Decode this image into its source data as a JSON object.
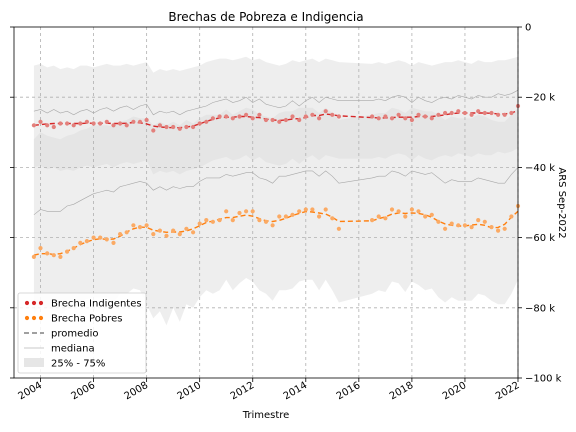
{
  "chart_data": {
    "type": "line",
    "title": "Brechas de Pobreza e Indigencia",
    "xlabel": "Trimestre",
    "ylabel": "ARS Sep-2022",
    "xlim": [
      2003.0,
      2022.0
    ],
    "ylim": [
      -100,
      0
    ],
    "y_axis_side": "right",
    "y_unit_suffix": " k",
    "grid": true,
    "legend_position": "lower-left",
    "x_ticks": [
      2004,
      2006,
      2008,
      2010,
      2012,
      2014,
      2016,
      2018,
      2020,
      2022
    ],
    "x_tick_labels": [
      "2004",
      "2006",
      "2008",
      "2010",
      "2012",
      "2014",
      "2016",
      "2018",
      "2020",
      "2022"
    ],
    "y_ticks": [
      0,
      -20,
      -40,
      -60,
      -80,
      -100
    ],
    "y_tick_labels": [
      "0",
      "−20 k",
      "−40 k",
      "−60 k",
      "−80 k",
      "−100 k"
    ],
    "legend": [
      {
        "label": "Brecha Indigentes",
        "kind": "dots",
        "color": "#d62728"
      },
      {
        "label": "Brecha Pobres",
        "kind": "dots",
        "color": "#ff7f0e"
      },
      {
        "label": "promedio",
        "kind": "dash",
        "color": "#808080"
      },
      {
        "label": "mediana",
        "kind": "line",
        "color": "#c8c8c8"
      },
      {
        "label": "25% - 75%",
        "kind": "patch",
        "color": "#e6e6e6"
      }
    ],
    "series": [
      {
        "name": "Brecha Indigentes",
        "color": "#d62728",
        "point_color": "#e3807c",
        "x": [
          2003.75,
          2004.0,
          2004.25,
          2004.5,
          2004.75,
          2005.0,
          2005.25,
          2005.5,
          2005.75,
          2006.0,
          2006.25,
          2006.5,
          2006.75,
          2007.0,
          2007.25,
          2007.5,
          2007.75,
          2008.0,
          2008.25,
          2008.5,
          2008.75,
          2009.0,
          2009.25,
          2009.5,
          2009.75,
          2010.0,
          2010.25,
          2010.5,
          2010.75,
          2011.0,
          2011.25,
          2011.5,
          2011.75,
          2012.0,
          2012.25,
          2012.5,
          2012.75,
          2013.0,
          2013.25,
          2013.5,
          2013.75,
          2014.0,
          2014.25,
          2014.5,
          2014.75,
          2015.0,
          2015.25,
          2016.5,
          2016.75,
          2017.0,
          2017.25,
          2017.5,
          2017.75,
          2018.0,
          2018.25,
          2018.5,
          2018.75,
          2019.0,
          2019.25,
          2019.5,
          2019.75,
          2020.0,
          2020.25,
          2020.5,
          2020.75,
          2021.0,
          2021.25,
          2021.5,
          2021.75,
          2022.0
        ],
        "points": [
          -28,
          -27,
          -28,
          -28.5,
          -27.5,
          -27.5,
          -28,
          -27.5,
          -27,
          -27.5,
          -27.5,
          -27,
          -28,
          -27.5,
          -28,
          -27,
          -27,
          -26.5,
          -29.5,
          -28,
          -28.5,
          -28.5,
          -29,
          -28.5,
          -28.5,
          -27.5,
          -27,
          -26,
          -25.5,
          -25.5,
          -26,
          -25.5,
          -25,
          -26,
          -25,
          -26.5,
          -26.5,
          -27,
          -26.5,
          -25.5,
          -26.5,
          -25.5,
          -25,
          -26,
          -24,
          -25,
          -25.5,
          -25.5,
          -26,
          -25.5,
          -26,
          -25,
          -26,
          -26.5,
          -25,
          -25.5,
          -26,
          -25,
          -24.5,
          -24.5,
          -24,
          -24.5,
          -25,
          -24,
          -24.5,
          -24.5,
          -25,
          -25,
          -24.5,
          -22.5
        ],
        "promedio": [
          -28,
          -27.8,
          -27.6,
          -27.5,
          -27.5,
          -27.5,
          -27.5,
          -27.5,
          -27.4,
          -27.4,
          -27.4,
          -27.4,
          -27.5,
          -27.5,
          -27.4,
          -27.2,
          -27.3,
          -27.6,
          -28.2,
          -28.5,
          -28.6,
          -28.7,
          -28.7,
          -28.5,
          -28.2,
          -27.6,
          -26.9,
          -26.3,
          -25.9,
          -25.7,
          -25.7,
          -25.5,
          -25.5,
          -25.7,
          -25.8,
          -26.2,
          -26.5,
          -26.6,
          -26.5,
          -26.2,
          -26.1,
          -25.8,
          -25.2,
          -25.2,
          -24.8,
          -25.0,
          -25.3,
          -25.8,
          -25.9,
          -25.9,
          -25.8,
          -25.7,
          -25.7,
          -25.7,
          -25.5,
          -25.5,
          -25.5,
          -25.3,
          -25.0,
          -24.7,
          -24.5,
          -24.5,
          -24.5,
          -24.5,
          -24.5,
          -24.6,
          -24.8,
          -24.8,
          -24.5,
          -23.8
        ],
        "mediana": [
          -24,
          -23.5,
          -24.5,
          -23.5,
          -24.5,
          -24,
          -25,
          -24,
          -23.5,
          -24.5,
          -23.5,
          -23,
          -24,
          -23,
          -22.5,
          -23.5,
          -22.5,
          -22,
          -25,
          -24,
          -24.5,
          -24,
          -25,
          -24,
          -23.5,
          -23,
          -22.5,
          -21.5,
          -21,
          -20.5,
          -21.5,
          -21,
          -20,
          -21.5,
          -20.5,
          -22,
          -22.5,
          -23,
          -22.5,
          -21,
          -22.5,
          -21,
          -20,
          -21.5,
          -20,
          -20.5,
          -21,
          -21,
          -20.5,
          -21,
          -20,
          -19.5,
          -20,
          -21.5,
          -20,
          -21,
          -21.5,
          -20.5,
          -20,
          -20.5,
          -19.5,
          -20,
          -20.5,
          -19.5,
          -20,
          -20,
          -19,
          -19.5,
          -19,
          -18
        ],
        "band_upper": [
          -11,
          -10.5,
          -11.5,
          -11,
          -12,
          -11.5,
          -12,
          -11,
          -11,
          -11.5,
          -11,
          -10.5,
          -11,
          -11,
          -10.5,
          -11,
          -10.5,
          -10,
          -13,
          -12,
          -12.5,
          -12,
          -12.5,
          -12,
          -11.5,
          -11,
          -10,
          -9.5,
          -9,
          -9,
          -9.5,
          -9,
          -8.5,
          -9.5,
          -9,
          -10,
          -10.5,
          -11,
          -10.5,
          -9.5,
          -10,
          -9.5,
          -9,
          -10,
          -9,
          -9.5,
          -10,
          -10.5,
          -10,
          -10.5,
          -10,
          -9.5,
          -10,
          -11,
          -10,
          -10.5,
          -11,
          -10.5,
          -10,
          -10,
          -9.5,
          -10,
          -10.5,
          -9.5,
          -10,
          -10,
          -9.5,
          -9.5,
          -9,
          -8.5
        ],
        "band_lower": [
          -40,
          -39.5,
          -40.5,
          -40,
          -41,
          -40.5,
          -41,
          -40,
          -39.5,
          -40,
          -39.5,
          -39,
          -40,
          -39,
          -38.5,
          -39,
          -38.5,
          -38,
          -42,
          -41,
          -41.5,
          -41,
          -42,
          -41,
          -40.5,
          -40,
          -39,
          -38,
          -37.5,
          -37,
          -38,
          -37.5,
          -36.5,
          -38,
          -37,
          -38.5,
          -39,
          -39.5,
          -39,
          -37.5,
          -39,
          -37.5,
          -36.5,
          -38,
          -36.5,
          -37,
          -37.5,
          -37.5,
          -37,
          -37.5,
          -36.5,
          -36,
          -36.5,
          -38,
          -36.5,
          -37.5,
          -38,
          -37,
          -36.5,
          -37,
          -36,
          -36.5,
          -37,
          -36,
          -36.5,
          -36.5,
          -35.5,
          -36,
          -35.5,
          -34.5
        ]
      },
      {
        "name": "Brecha Pobres",
        "color": "#ff7f0e",
        "point_color": "#fbaa64",
        "x": [
          2003.75,
          2004.0,
          2004.25,
          2004.5,
          2004.75,
          2005.0,
          2005.25,
          2005.5,
          2005.75,
          2006.0,
          2006.25,
          2006.5,
          2006.75,
          2007.0,
          2007.25,
          2007.5,
          2007.75,
          2008.0,
          2008.25,
          2008.5,
          2008.75,
          2009.0,
          2009.25,
          2009.5,
          2009.75,
          2010.0,
          2010.25,
          2010.5,
          2010.75,
          2011.0,
          2011.25,
          2011.5,
          2011.75,
          2012.0,
          2012.25,
          2012.5,
          2012.75,
          2013.0,
          2013.25,
          2013.5,
          2013.75,
          2014.0,
          2014.25,
          2014.5,
          2014.75,
          2015.0,
          2015.25,
          2016.5,
          2016.75,
          2017.0,
          2017.25,
          2017.5,
          2017.75,
          2018.0,
          2018.25,
          2018.5,
          2018.75,
          2019.0,
          2019.25,
          2019.5,
          2019.75,
          2020.0,
          2020.25,
          2020.5,
          2020.75,
          2021.0,
          2021.25,
          2021.5,
          2021.75,
          2022.0
        ],
        "points": [
          -65.5,
          -63,
          -64.5,
          -65,
          -65.5,
          -64,
          -63,
          -61.5,
          -61,
          -60,
          -60,
          -60.5,
          -61.5,
          -59,
          -58.5,
          -56.5,
          -57,
          -56.5,
          -59,
          -58,
          -59.5,
          -58,
          -59,
          -57.5,
          -58.5,
          -56,
          -55,
          -55.5,
          -55,
          -52.5,
          -55,
          -53,
          -52.5,
          -52.5,
          -55,
          -55.5,
          -56.5,
          -54,
          -54,
          -53.5,
          -52.5,
          -52,
          -52,
          -54,
          -52,
          -54.5,
          -57.5,
          -55,
          -54,
          -54.5,
          -52,
          -52.5,
          -54,
          -52,
          -52.5,
          -54,
          -53.5,
          -55.5,
          -57.5,
          -56,
          -56.5,
          -56.5,
          -57,
          -55,
          -55.5,
          -57,
          -58,
          -57.5,
          -54,
          -51
        ],
        "promedio": [
          -65,
          -64.6,
          -64.6,
          -64.8,
          -64.6,
          -63.9,
          -63.0,
          -62.0,
          -61.2,
          -60.6,
          -60.3,
          -60.5,
          -60.4,
          -59.6,
          -58.4,
          -57.5,
          -57.0,
          -57.1,
          -57.9,
          -58.2,
          -58.5,
          -58.4,
          -58.4,
          -58.1,
          -57.5,
          -56.6,
          -55.7,
          -55.3,
          -54.8,
          -54.3,
          -54.3,
          -53.9,
          -53.6,
          -53.9,
          -54.6,
          -55.2,
          -55.4,
          -55.1,
          -54.5,
          -53.7,
          -53.1,
          -52.6,
          -52.7,
          -53.0,
          -53.3,
          -54.2,
          -55.4,
          -55.2,
          -54.6,
          -54.1,
          -53.3,
          -53.0,
          -53.1,
          -53.0,
          -53.1,
          -53.5,
          -54.2,
          -55.3,
          -56.1,
          -56.5,
          -56.7,
          -56.7,
          -56.4,
          -56.2,
          -56.5,
          -57.2,
          -57.1,
          -56.2,
          -54.2,
          -52.5
        ],
        "mediana": [
          -53.5,
          -52,
          -52.5,
          -52.5,
          -52.5,
          -51,
          -50.5,
          -49.5,
          -48.5,
          -47.5,
          -47,
          -46.5,
          -47,
          -45.5,
          -45,
          -44.5,
          -44,
          -44.5,
          -46.5,
          -45.5,
          -46.5,
          -45.5,
          -46,
          -45.5,
          -45.5,
          -44,
          -43,
          -43,
          -43,
          -42,
          -42.5,
          -42,
          -41.5,
          -41.5,
          -43,
          -43.5,
          -44.5,
          -42.5,
          -42.5,
          -42,
          -41.5,
          -41,
          -41,
          -42.5,
          -41,
          -42.5,
          -44.5,
          -43,
          -42.5,
          -42.5,
          -41,
          -41.5,
          -42.5,
          -41,
          -41.5,
          -42,
          -41.5,
          -43,
          -44.5,
          -43.5,
          -44,
          -44,
          -44,
          -43,
          -43.5,
          -44,
          -44.5,
          -44.5,
          -42,
          -40
        ],
        "band_upper": [
          -32,
          -30,
          -31,
          -31.5,
          -32,
          -31,
          -30.5,
          -29.5,
          -29,
          -28,
          -28,
          -28,
          -28.5,
          -27,
          -26.5,
          -25.5,
          -26,
          -26,
          -28,
          -27,
          -28,
          -27,
          -28,
          -26.5,
          -27.5,
          -26,
          -25,
          -25,
          -25,
          -23.5,
          -25,
          -24,
          -23,
          -23.5,
          -25,
          -25.5,
          -26,
          -24.5,
          -24,
          -24,
          -23,
          -23,
          -23,
          -24.5,
          -23,
          -24.5,
          -26.5,
          -25,
          -24.5,
          -24.5,
          -23,
          -23.5,
          -24.5,
          -23,
          -23.5,
          -24,
          -24,
          -25,
          -26.5,
          -25.5,
          -26,
          -26,
          -26,
          -25,
          -25.5,
          -26.5,
          -27,
          -27,
          -25,
          -23
        ],
        "band_lower": [
          -82,
          -79,
          -80,
          -81,
          -82,
          -80.5,
          -80,
          -78.5,
          -77.5,
          -77,
          -77,
          -77,
          -78.5,
          -76,
          -76,
          -74.5,
          -75,
          -79,
          -83,
          -81,
          -85,
          -80,
          -84,
          -79,
          -80,
          -77,
          -75,
          -76,
          -75,
          -72,
          -75,
          -73,
          -71.5,
          -72.5,
          -75,
          -76,
          -78,
          -75,
          -75,
          -74.5,
          -72.5,
          -72,
          -72,
          -75,
          -72,
          -75,
          -78.5,
          -76,
          -75,
          -75.5,
          -72.5,
          -73,
          -75.5,
          -72.5,
          -73.5,
          -75,
          -74.5,
          -77,
          -78.5,
          -77,
          -78,
          -78,
          -78,
          -76,
          -76.5,
          -78,
          -79,
          -79,
          -76,
          -72
        ]
      }
    ]
  }
}
